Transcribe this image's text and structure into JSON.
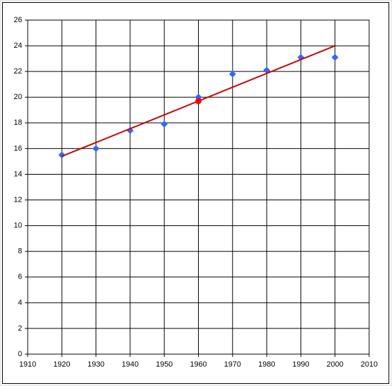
{
  "chart_data": {
    "type": "scatter",
    "xlim": [
      1910,
      2010
    ],
    "xticks": [
      1910,
      1920,
      1930,
      1940,
      1950,
      1960,
      1970,
      1980,
      1990,
      2000,
      2010
    ],
    "ylim": [
      0,
      26
    ],
    "yticks": [
      0,
      2,
      4,
      6,
      8,
      10,
      12,
      14,
      16,
      18,
      20,
      22,
      24,
      26
    ],
    "grid": true,
    "series": [
      {
        "color": "#3366ff",
        "mode": "markers",
        "marker": "diamond",
        "x": [
          1920,
          1930,
          1940,
          1950,
          1960,
          1970,
          1980,
          1990,
          2000
        ],
        "values": [
          15.5,
          16.0,
          17.4,
          17.9,
          20.0,
          21.8,
          22.1,
          23.1,
          23.1
        ]
      },
      {
        "color": "#cc0000",
        "mode": "line",
        "x": [
          1920,
          2000
        ],
        "values": [
          15.4,
          24.0
        ]
      },
      {
        "color": "#ff0000",
        "mode": "markers",
        "marker": "circle",
        "x": [
          1960
        ],
        "values": [
          19.7
        ]
      }
    ]
  }
}
